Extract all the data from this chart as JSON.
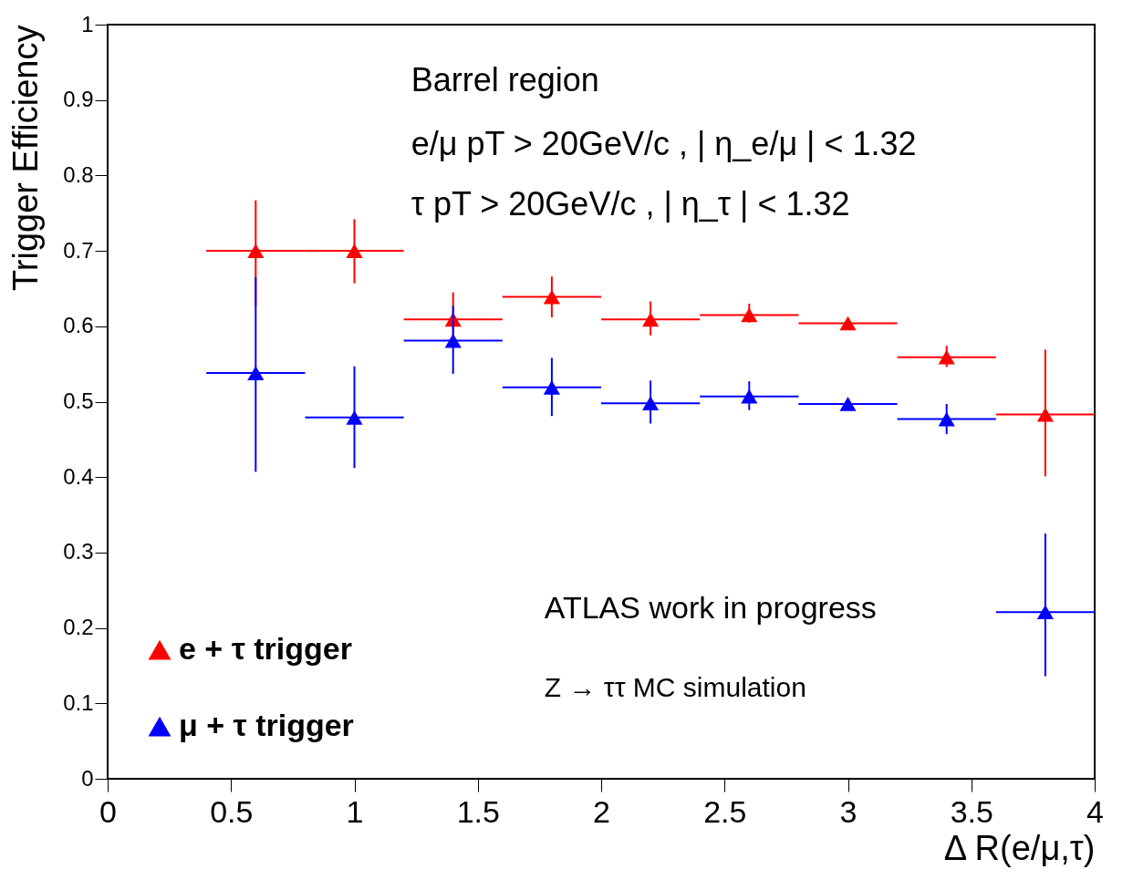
{
  "chart_data": {
    "type": "scatter",
    "xlabel": "Δ R(e/μ,τ)",
    "ylabel": "Trigger Efficiency",
    "xlim": [
      0,
      4
    ],
    "xticks": [
      0,
      0.5,
      1,
      1.5,
      2,
      2.5,
      3,
      3.5,
      4
    ],
    "ylim": [
      0,
      1
    ],
    "yticks": [
      0,
      0.1,
      0.2,
      0.3,
      0.4,
      0.5,
      0.6,
      0.7,
      0.8,
      0.9,
      1
    ],
    "grid": false,
    "legend": "bottom left",
    "marker": "triangle",
    "annotations": [
      "Barrel region",
      "e/μ pT > 20GeV/c , | η_e/μ | < 1.32",
      "τ pT > 20GeV/c , | η_τ | < 1.32",
      "ATLAS  work in progress",
      "Z → ττ MC simulation"
    ],
    "series": [
      {
        "name": "e + τ trigger",
        "color": "#ff0000",
        "x": [
          0.6,
          1.0,
          1.4,
          1.8,
          2.2,
          2.6,
          3.0,
          3.4,
          3.8
        ],
        "values": [
          0.7,
          0.7,
          0.609,
          0.639,
          0.609,
          0.615,
          0.604,
          0.559,
          0.483
        ],
        "errors": [
          [
            0.627,
            0.767
          ],
          [
            0.657,
            0.742
          ],
          [
            0.581,
            0.645
          ],
          [
            0.612,
            0.666
          ],
          [
            0.588,
            0.633
          ],
          [
            0.605,
            0.63
          ],
          [
            0.601,
            0.607
          ],
          [
            0.546,
            0.574
          ],
          [
            0.401,
            0.569
          ]
        ],
        "xerrors": [
          0.2,
          0.2,
          0.2,
          0.2,
          0.2,
          0.2,
          0.2,
          0.2,
          0.2
        ]
      },
      {
        "name": "μ + τ trigger",
        "color": "#0000ff",
        "x": [
          0.6,
          1.0,
          1.4,
          1.8,
          2.2,
          2.6,
          3.0,
          3.4,
          3.8
        ],
        "values": [
          0.538,
          0.479,
          0.581,
          0.519,
          0.498,
          0.507,
          0.497,
          0.477,
          0.221
        ],
        "errors": [
          [
            0.407,
            0.665
          ],
          [
            0.412,
            0.547
          ],
          [
            0.537,
            0.627
          ],
          [
            0.481,
            0.558
          ],
          [
            0.471,
            0.528
          ],
          [
            0.489,
            0.527
          ],
          [
            0.494,
            0.5
          ],
          [
            0.457,
            0.497
          ],
          [
            0.136,
            0.325
          ]
        ],
        "xerrors": [
          0.2,
          0.2,
          0.2,
          0.2,
          0.2,
          0.2,
          0.2,
          0.2,
          0.2
        ]
      }
    ]
  }
}
